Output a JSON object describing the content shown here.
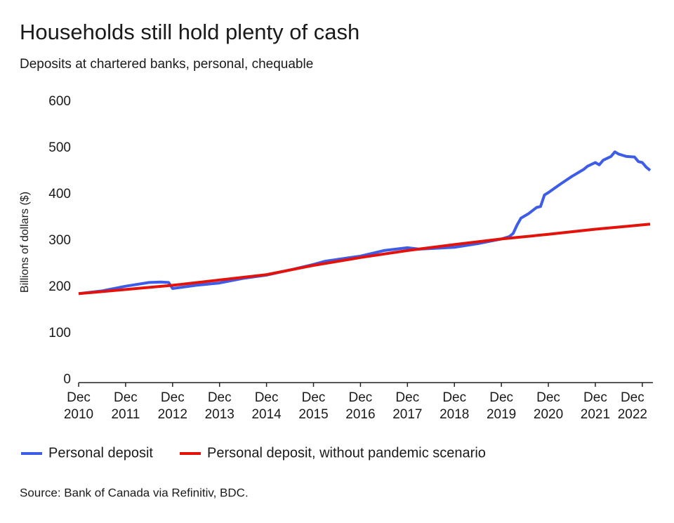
{
  "chart_data": {
    "type": "line",
    "title": "Households still hold plenty of cash",
    "subtitle": "Deposits at chartered banks, personal, chequable",
    "y_label": "Billions of dollars ($)",
    "source": "Source: Bank of Canada via Refinitiv, BDC.",
    "xlim": [
      "2010-12",
      "2023-02"
    ],
    "xticks": [
      {
        "value": "2010-12",
        "label": "Dec 2010"
      },
      {
        "value": "2011-12",
        "label": "Dec 2011"
      },
      {
        "value": "2012-12",
        "label": "Dec 2012"
      },
      {
        "value": "2013-12",
        "label": "Dec 2013"
      },
      {
        "value": "2014-12",
        "label": "Dec 2014"
      },
      {
        "value": "2015-12",
        "label": "Dec 2015"
      },
      {
        "value": "2016-12",
        "label": "Dec 2016"
      },
      {
        "value": "2017-12",
        "label": "Dec 2017"
      },
      {
        "value": "2018-12",
        "label": "Dec 2018"
      },
      {
        "value": "2019-12",
        "label": "Dec 2019"
      },
      {
        "value": "2020-12",
        "label": "Dec 2020"
      },
      {
        "value": "2021-12",
        "label": "Dec 2021"
      },
      {
        "value": "2022-12",
        "label": "Dec 2022"
      }
    ],
    "ylim": [
      0,
      600
    ],
    "yticks": [
      0,
      100,
      200,
      300,
      400,
      500,
      600
    ],
    "grid": false,
    "series": [
      {
        "name": "Personal deposit",
        "color": "#3d5ce8",
        "x": [
          "2010-12",
          "2011-06",
          "2011-12",
          "2012-06",
          "2012-09",
          "2012-11",
          "2012-12",
          "2013-06",
          "2013-12",
          "2014-06",
          "2014-12",
          "2015-06",
          "2015-12",
          "2016-03",
          "2016-12",
          "2017-06",
          "2017-12",
          "2018-03",
          "2018-12",
          "2019-06",
          "2019-12",
          "2020-02",
          "2020-03",
          "2020-04",
          "2020-05",
          "2020-07",
          "2020-09",
          "2020-10",
          "2020-11",
          "2020-12",
          "2021-03",
          "2021-06",
          "2021-09",
          "2021-10",
          "2021-12",
          "2022-01",
          "2022-02",
          "2022-04",
          "2022-05",
          "2022-06",
          "2022-08",
          "2022-10",
          "2022-11",
          "2022-12",
          "2023-01",
          "2023-02"
        ],
        "values": [
          192,
          198,
          208,
          216,
          217,
          216,
          203,
          210,
          215,
          225,
          232,
          243,
          255,
          262,
          273,
          285,
          291,
          288,
          292,
          300,
          310,
          315,
          322,
          340,
          355,
          365,
          378,
          380,
          405,
          410,
          428,
          445,
          460,
          467,
          475,
          470,
          480,
          488,
          498,
          493,
          488,
          487,
          477,
          475,
          465,
          458
        ]
      },
      {
        "name": "Personal deposit, without pandemic scenario",
        "color": "#e3120b",
        "x": [
          "2010-12",
          "2012-12",
          "2014-12",
          "2015-12",
          "2016-12",
          "2017-12",
          "2018-12",
          "2019-12",
          "2020-12",
          "2021-12",
          "2023-02"
        ],
        "values": [
          192,
          210,
          233,
          253,
          270,
          285,
          298,
          310,
          320,
          331,
          342
        ]
      }
    ]
  }
}
